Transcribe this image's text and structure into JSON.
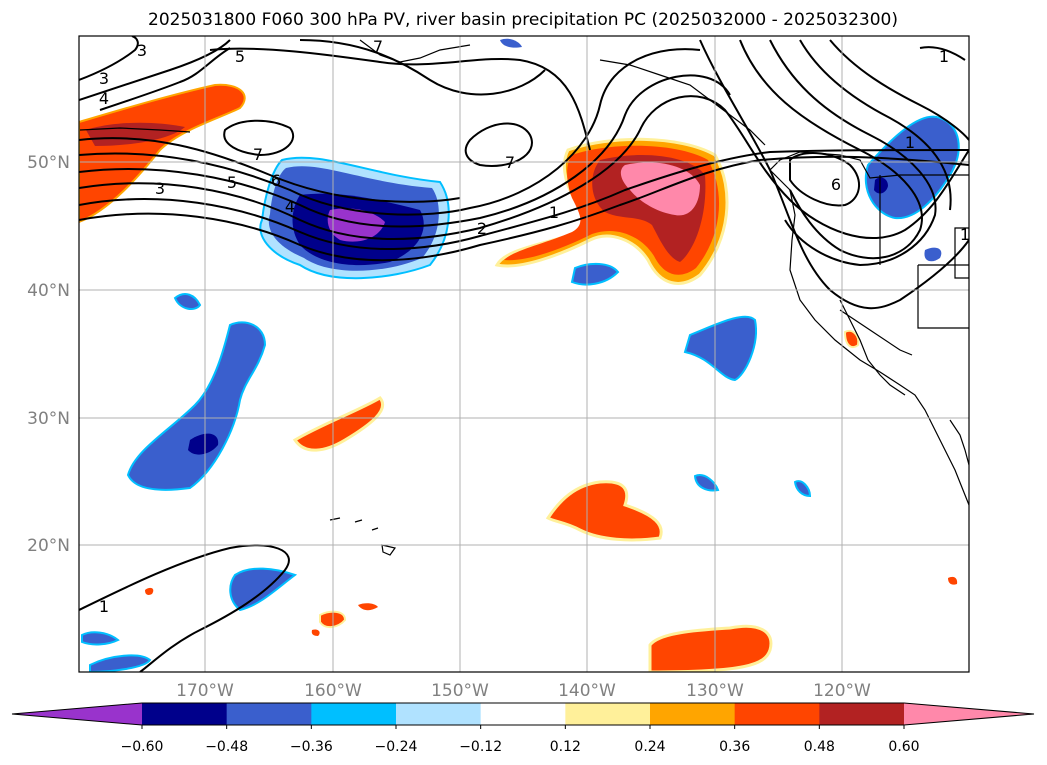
{
  "title": "2025031800 F060 300 hPa PV, river basin precipitation PC (2025032000 - 2025032300)",
  "lat_labels": [
    "50°N",
    "40°N",
    "30°N",
    "20°N"
  ],
  "lon_labels": [
    "170°W",
    "160°W",
    "150°W",
    "140°W",
    "130°W",
    "120°W"
  ],
  "colorbar": {
    "ticks": [
      "−0.60",
      "−0.48",
      "−0.36",
      "−0.24",
      "−0.12",
      "0.12",
      "0.24",
      "0.36",
      "0.48",
      "0.60"
    ],
    "colors": [
      "#9933cc",
      "#00008b",
      "#3a5fcd",
      "#00bfff",
      "#b0e2ff",
      "#ffffff",
      "#fff09a",
      "#ffa500",
      "#ff4500",
      "#b22222",
      "#ff88aa"
    ]
  },
  "contour_labels": [
    "3",
    "3",
    "4",
    "5",
    "7",
    "5",
    "6",
    "3",
    "4",
    "7",
    "2",
    "1",
    "1",
    "6",
    "1",
    "1",
    "7",
    "1"
  ]
}
